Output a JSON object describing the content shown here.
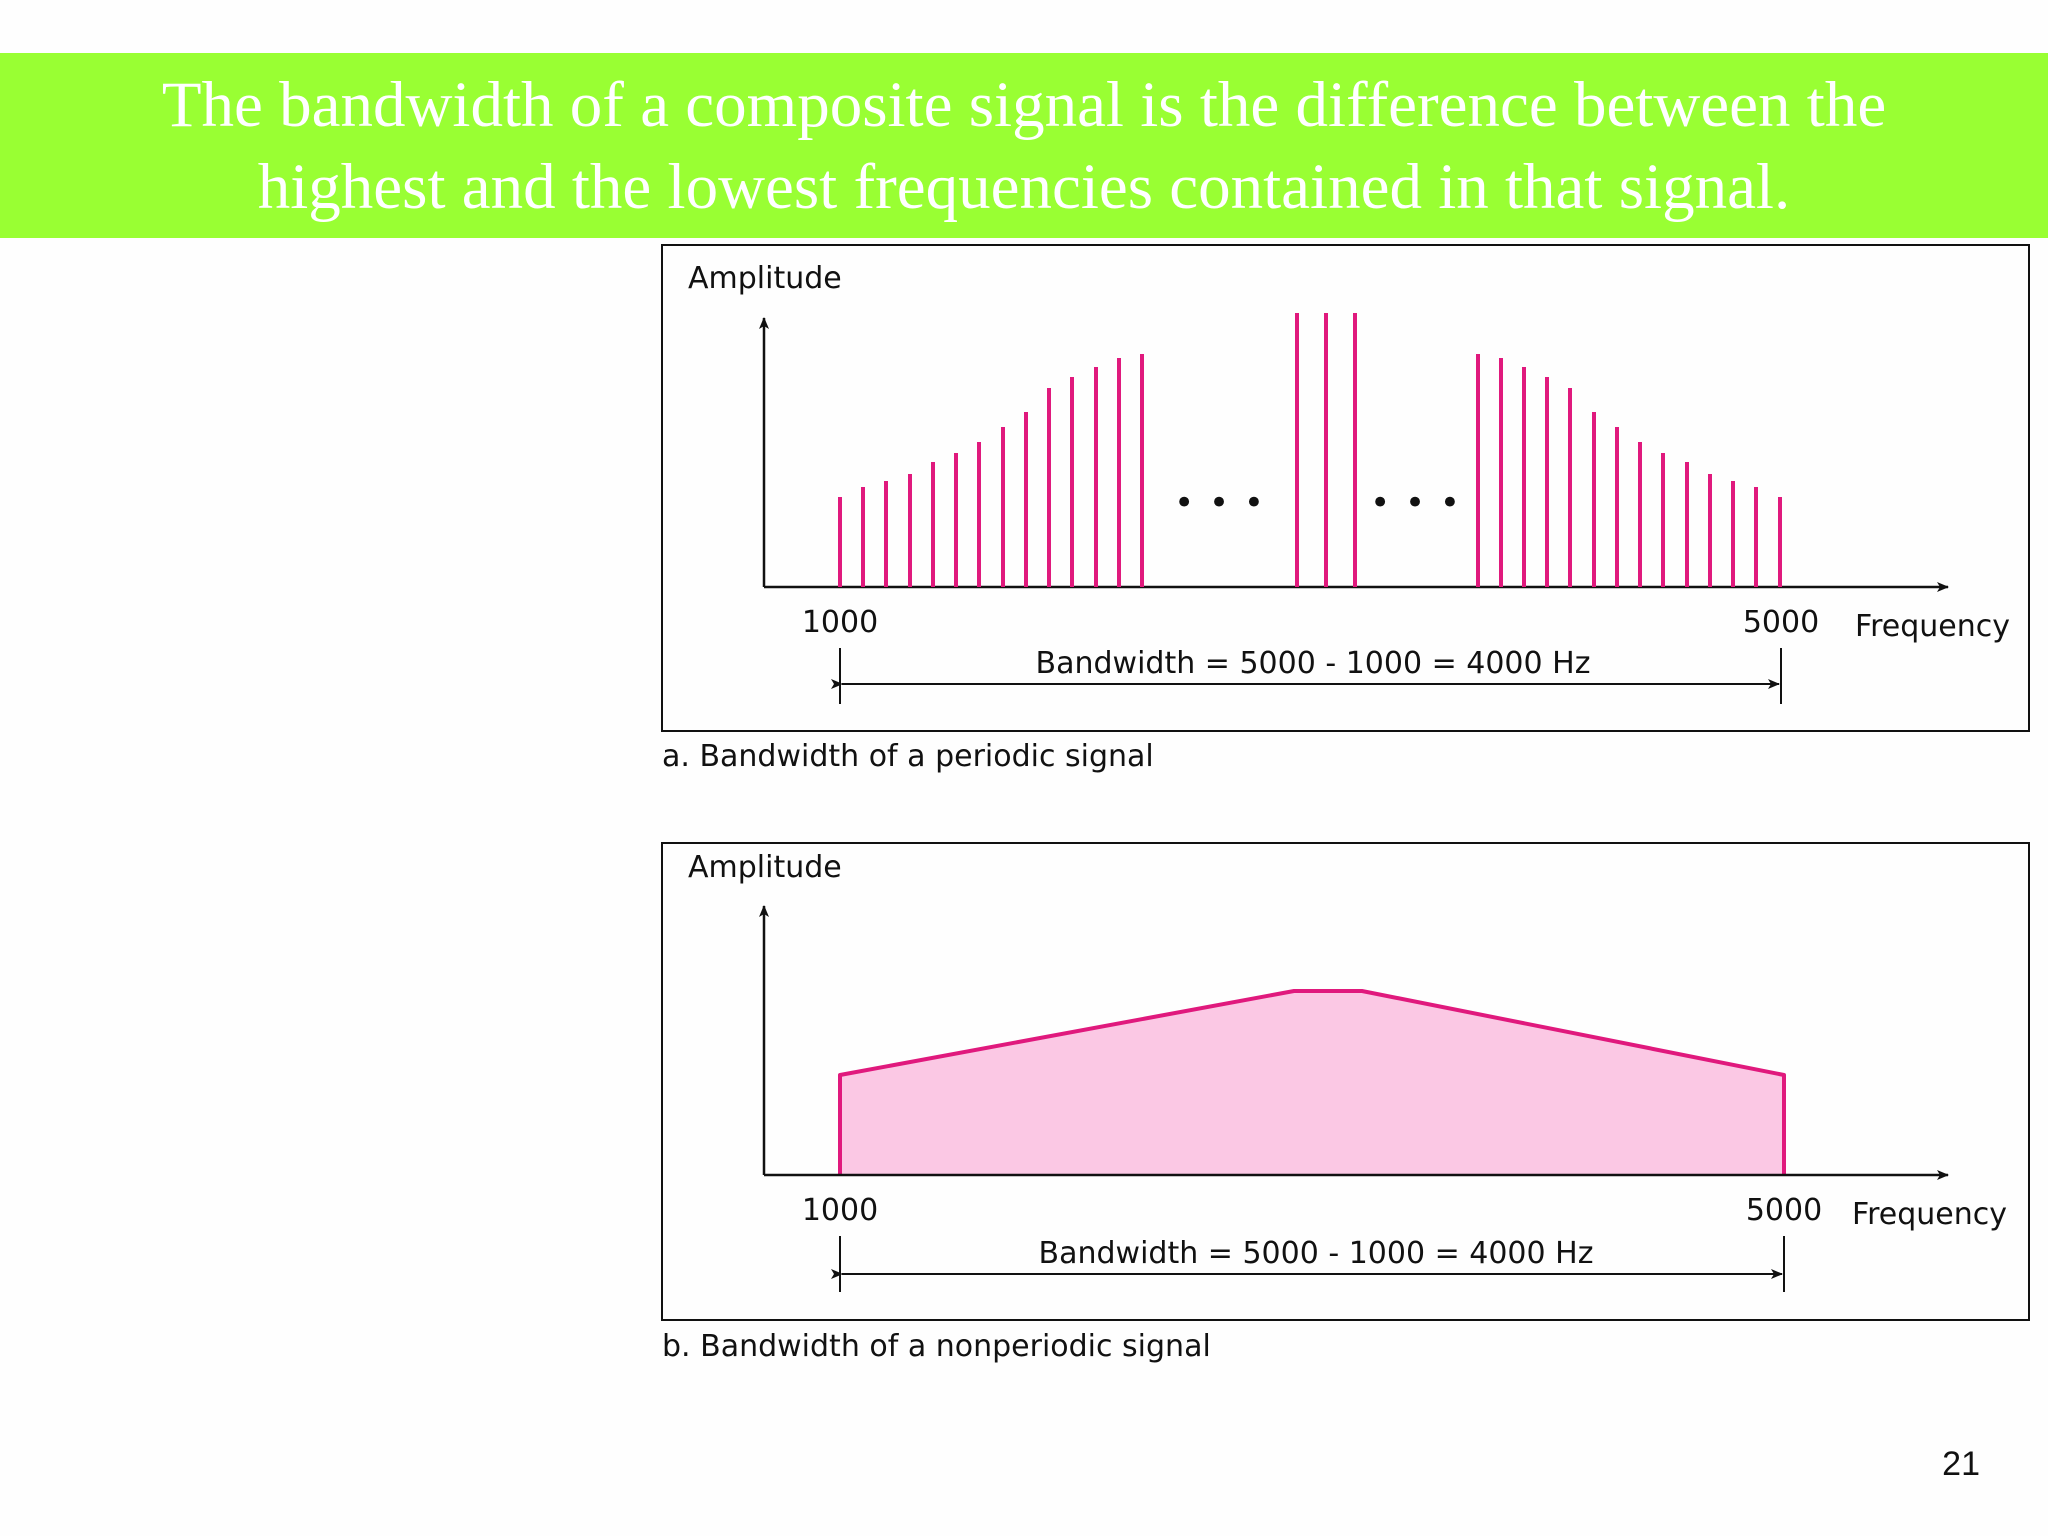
{
  "slide": {
    "title": "The bandwidth of a composite signal is the difference between the highest and the lowest frequencies contained in that signal.",
    "page_number": "21",
    "colors": {
      "banner": "#99ff33",
      "title_text": "#ffffff",
      "signal": "#e0197d",
      "fill": "#fbc8e4"
    }
  },
  "figure_a": {
    "ylabel": "Amplitude",
    "xlabel": "Frequency",
    "tick_low": "1000",
    "tick_high": "5000",
    "ellipsis_left": "• • •",
    "ellipsis_right": "• • •",
    "bandwidth_label": "Bandwidth = 5000 - 1000 = 4000 Hz",
    "caption": "a. Bandwidth of a periodic signal"
  },
  "figure_b": {
    "ylabel": "Amplitude",
    "xlabel": "Frequency",
    "tick_low": "1000",
    "tick_high": "5000",
    "bandwidth_label": "Bandwidth = 5000 - 1000 = 4000 Hz",
    "caption": "b. Bandwidth of a nonperiodic signal"
  }
}
